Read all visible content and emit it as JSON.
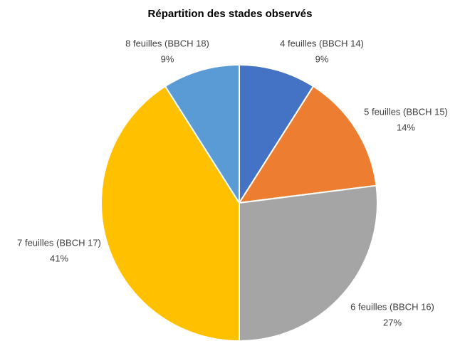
{
  "chart_data": {
    "type": "pie",
    "title": "Répartition des stades observés",
    "categories": [
      "4 feuilles (BBCH 14)",
      "5 feuilles (BBCH 15)",
      "6 feuilles (BBCH 16)",
      "7 feuilles (BBCH 17)",
      "8 feuilles (BBCH 18)"
    ],
    "values": [
      9,
      14,
      27,
      41,
      9
    ],
    "value_labels": [
      "9%",
      "14%",
      "27%",
      "41%",
      "9%"
    ],
    "colors": [
      "#4472c4",
      "#ed7d31",
      "#a5a5a5",
      "#ffc000",
      "#5b9bd5"
    ]
  }
}
